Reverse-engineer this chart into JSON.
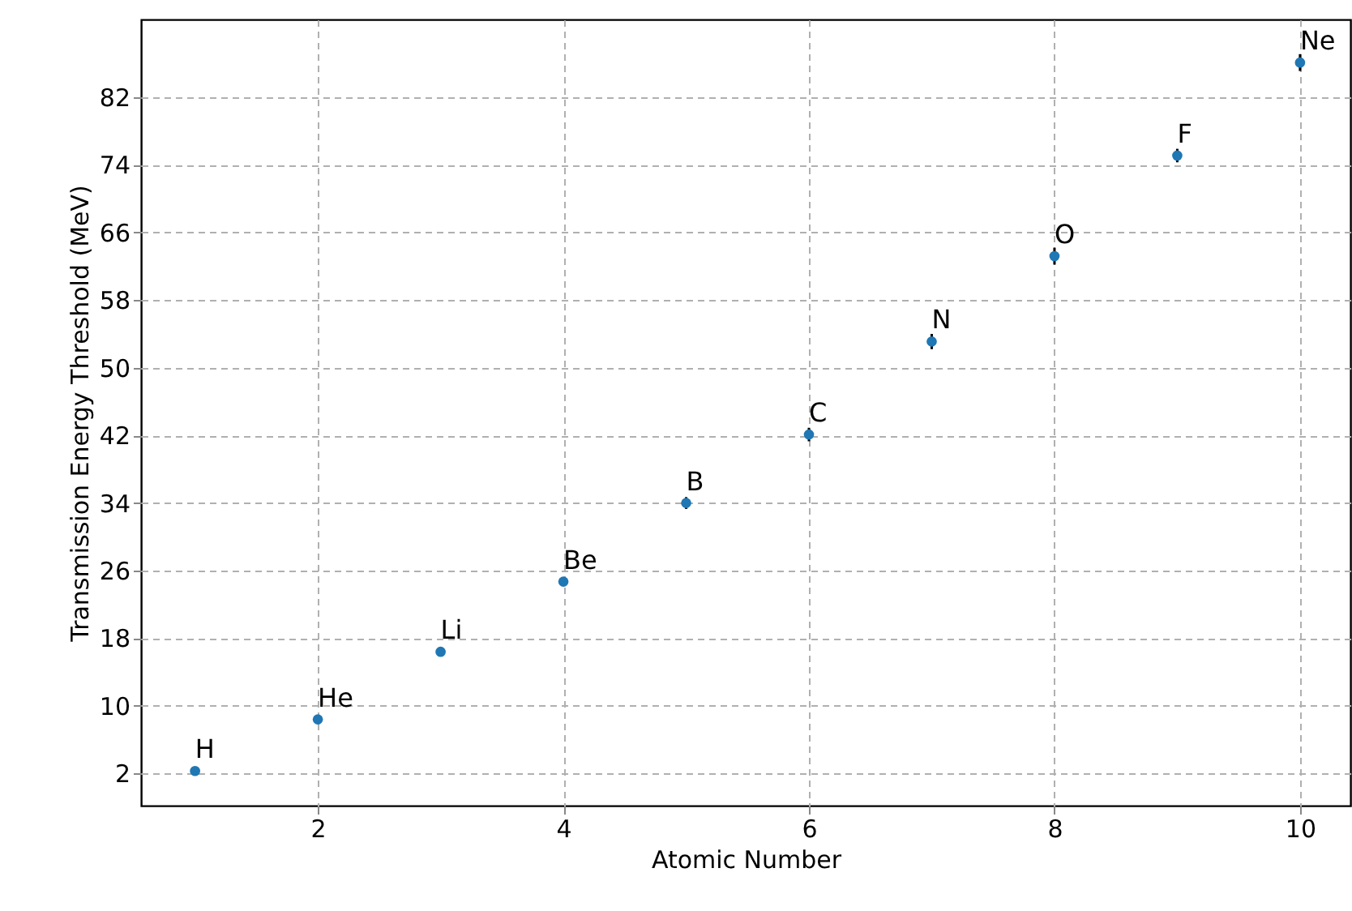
{
  "chart_data": {
    "type": "scatter",
    "xlabel": "Atomic Number",
    "ylabel": "Transmission Energy Threshold (MeV)",
    "x": [
      1,
      2,
      3,
      4,
      5,
      6,
      7,
      8,
      9,
      10
    ],
    "series": [
      {
        "color": "#1f77b4",
        "values": [
          2.3,
          8.4,
          16.4,
          24.7,
          34.0,
          42.1,
          53.1,
          63.2,
          75.1,
          86.1
        ],
        "errors": [
          null,
          null,
          null,
          null,
          0.7,
          0.8,
          0.9,
          1.0,
          0.8,
          1.0
        ]
      }
    ],
    "annotations": [
      {
        "text": "H",
        "x": 1,
        "y": 2.3
      },
      {
        "text": "He",
        "x": 2,
        "y": 8.4
      },
      {
        "text": "Li",
        "x": 3,
        "y": 16.4
      },
      {
        "text": "Be",
        "x": 4,
        "y": 24.7
      },
      {
        "text": "B",
        "x": 5,
        "y": 34.0
      },
      {
        "text": "C",
        "x": 6,
        "y": 42.1
      },
      {
        "text": "N",
        "x": 7,
        "y": 53.1
      },
      {
        "text": "O",
        "x": 8,
        "y": 63.2
      },
      {
        "text": "F",
        "x": 9,
        "y": 75.1
      },
      {
        "text": "Ne",
        "x": 10,
        "y": 86.1
      }
    ],
    "xlim": [
      0.56,
      10.41
    ],
    "xticks": [
      2,
      4,
      6,
      8,
      10
    ],
    "ylim": [
      -1.8,
      91.2
    ],
    "yticks": [
      2,
      10,
      18,
      26,
      34,
      42,
      50,
      58,
      66,
      74,
      82
    ],
    "grid": true,
    "marker": "circle"
  }
}
